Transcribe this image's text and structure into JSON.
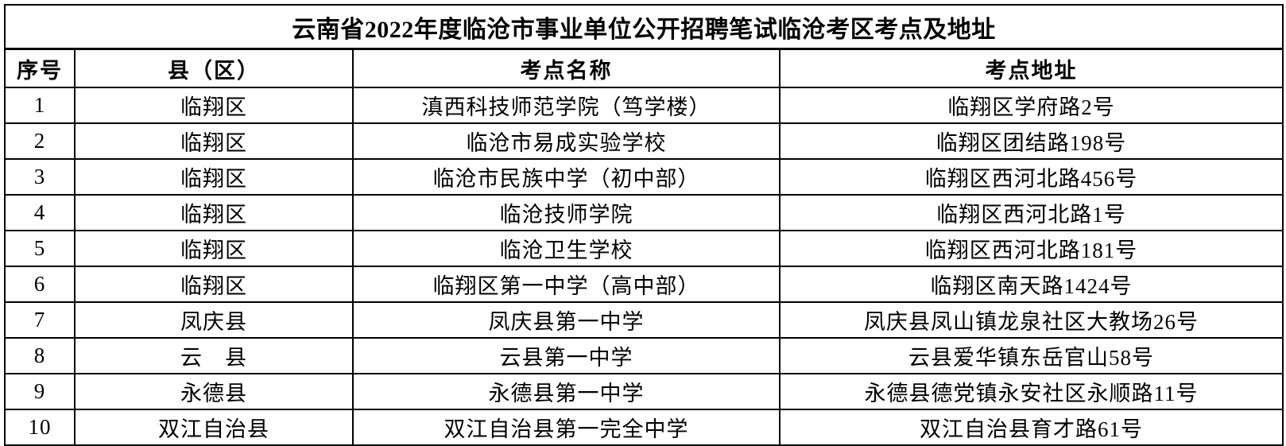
{
  "title": "云南省2022年度临沧市事业单位公开招聘笔试临沧考区考点及地址",
  "table": {
    "columns": [
      "序号",
      "县（区）",
      "考点名称",
      "考点地址"
    ],
    "rows": [
      {
        "index": "1",
        "county": "临翔区",
        "site_name": "滇西科技师范学院（笃学楼）",
        "site_address": "临翔区学府路2号"
      },
      {
        "index": "2",
        "county": "临翔区",
        "site_name": "临沧市易成实验学校",
        "site_address": "临翔区团结路198号"
      },
      {
        "index": "3",
        "county": "临翔区",
        "site_name": "临沧市民族中学（初中部）",
        "site_address": "临翔区西河北路456号"
      },
      {
        "index": "4",
        "county": "临翔区",
        "site_name": "临沧技师学院",
        "site_address": "临翔区西河北路1号"
      },
      {
        "index": "5",
        "county": "临翔区",
        "site_name": "临沧卫生学校",
        "site_address": "临翔区西河北路181号"
      },
      {
        "index": "6",
        "county": "临翔区",
        "site_name": "临翔区第一中学（高中部）",
        "site_address": "临翔区南天路1424号"
      },
      {
        "index": "7",
        "county": "凤庆县",
        "site_name": "凤庆县第一中学",
        "site_address": "凤庆县凤山镇龙泉社区大教场26号"
      },
      {
        "index": "8",
        "county": "云　县",
        "site_name": "云县第一中学",
        "site_address": "云县爱华镇东岳官山58号"
      },
      {
        "index": "9",
        "county": "永德县",
        "site_name": "永德县第一中学",
        "site_address": "永德县德党镇永安社区永顺路11号"
      },
      {
        "index": "10",
        "county": "双江自治县",
        "site_name": "双江自治县第一完全中学",
        "site_address": "双江自治县育才路61号"
      }
    ]
  },
  "colors": {
    "background": "#ffffff",
    "border": "#000000",
    "text": "#000000"
  }
}
